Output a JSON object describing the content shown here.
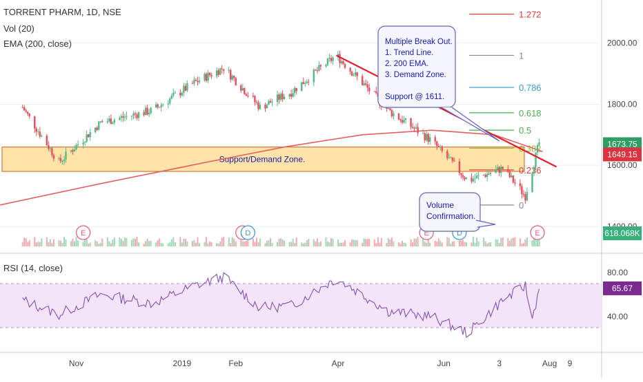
{
  "header": {
    "title": "TORRENT PHARM, 1D, NSE",
    "vol_label": "Vol (20)",
    "ema_label": "EMA (200, close)",
    "rsi_label": "RSI (14, close)"
  },
  "colors": {
    "up": "#53b987",
    "down": "#eb4d5c",
    "ema": "#e55e5e",
    "trendline": "#e01f2f",
    "zone_fill": "#ffe3a8",
    "zone_border": "#c97a3c",
    "rsi_line": "#8e5bb5",
    "rsi_band": "#f3e4f9",
    "fib_1272": "#e53935",
    "fib_1": "#888888",
    "fib_0786": "#3aa0c8",
    "fib_0618": "#4caf50",
    "fib_05": "#4caf50",
    "fib_0382": "#9cb835",
    "fib_0236": "#e53935",
    "fib_0": "#888888",
    "annotation_text": "#1a1aa8"
  },
  "chart_data": [
    {
      "type": "candlestick",
      "panel": "price",
      "title": "TORRENT PHARM, 1D, NSE",
      "y_axis_ticks": [
        2000.0,
        1800.0,
        1600.0,
        1400.0
      ],
      "y_axis_tick_labels": [
        "2000.00",
        "1800.00",
        "1600.00",
        "1400.00"
      ],
      "x_axis_tick_labels": [
        "Nov",
        "2019",
        "Feb",
        "Apr",
        "Jun",
        "3",
        "Aug",
        "9"
      ],
      "ylim": [
        1330,
        2130
      ],
      "last_close": 1673.75,
      "last_close_label": "1673.75",
      "ema200_value": 1649.15,
      "ema200_label": "1649.15",
      "approx_close_path": [
        {
          "x": "2018-10-01",
          "y": 1790
        },
        {
          "x": "2018-10-22",
          "y": 1610
        },
        {
          "x": "2018-11-15",
          "y": 1740
        },
        {
          "x": "2018-12-15",
          "y": 1780
        },
        {
          "x": "2019-01-08",
          "y": 1870
        },
        {
          "x": "2019-01-25",
          "y": 1920
        },
        {
          "x": "2019-02-15",
          "y": 1790
        },
        {
          "x": "2019-03-05",
          "y": 1840
        },
        {
          "x": "2019-03-31",
          "y": 1960
        },
        {
          "x": "2019-04-30",
          "y": 1780
        },
        {
          "x": "2019-05-25",
          "y": 1680
        },
        {
          "x": "2019-06-15",
          "y": 1550
        },
        {
          "x": "2019-07-05",
          "y": 1590
        },
        {
          "x": "2019-07-18",
          "y": 1500
        },
        {
          "x": "2019-07-26",
          "y": 1673.75
        }
      ],
      "fibonacci_levels": [
        {
          "label": "1.272",
          "value": 2095,
          "color_key": "fib_1272"
        },
        {
          "label": "1",
          "value": 1960,
          "color_key": "fib_1"
        },
        {
          "label": "0.786",
          "value": 1855,
          "color_key": "fib_0786"
        },
        {
          "label": "0.618",
          "value": 1772,
          "color_key": "fib_0618"
        },
        {
          "label": "0.5",
          "value": 1715,
          "color_key": "fib_05"
        },
        {
          "label": "0.382",
          "value": 1656,
          "color_key": "fib_0382"
        },
        {
          "label": "0.236",
          "value": 1585,
          "color_key": "fib_0236"
        },
        {
          "label": "0",
          "value": 1470,
          "color_key": "fib_0"
        }
      ],
      "annotations": {
        "zone_label": "Support/Demand Zone.",
        "zone_range": [
          1580,
          1660
        ],
        "breakout_text": [
          "Multiple Break Out.",
          "1. Trend Line.",
          "2. 200 EMA.",
          "3. Demand Zone.",
          "",
          "Support @ 1611."
        ],
        "volume_text": [
          "Volume",
          "Confirmation."
        ],
        "trendline": [
          {
            "x": "2019-03-31",
            "y": 1960
          },
          {
            "x": "2019-07-28",
            "y": 1595
          }
        ]
      },
      "events": [
        {
          "x": "2018-11-05",
          "label": "E"
        },
        {
          "x": "2019-02-05",
          "label": "E"
        },
        {
          "x": "2019-02-08",
          "label": "D"
        },
        {
          "x": "2019-05-22",
          "label": "E"
        },
        {
          "x": "2019-06-10",
          "label": "D"
        },
        {
          "x": "2019-07-25",
          "label": "E"
        }
      ]
    },
    {
      "type": "bar",
      "panel": "volume",
      "series": [
        {
          "name": "Vol (20)"
        }
      ],
      "last_value": "618.068K"
    },
    {
      "type": "line",
      "panel": "rsi",
      "title": "RSI (14, close)",
      "y_axis_ticks": [
        80.0,
        40.0
      ],
      "y_axis_tick_labels": [
        "80.00",
        "40.00"
      ],
      "band": [
        30,
        70
      ],
      "ylim": [
        10,
        95
      ],
      "last_value": 65.67,
      "last_value_label": "65.67",
      "approx_path": [
        {
          "x": "2018-10-01",
          "y": 55
        },
        {
          "x": "2018-10-22",
          "y": 42
        },
        {
          "x": "2018-11-15",
          "y": 60
        },
        {
          "x": "2018-12-15",
          "y": 52
        },
        {
          "x": "2019-01-08",
          "y": 68
        },
        {
          "x": "2019-01-25",
          "y": 76
        },
        {
          "x": "2019-02-15",
          "y": 48
        },
        {
          "x": "2019-03-05",
          "y": 50
        },
        {
          "x": "2019-03-31",
          "y": 75
        },
        {
          "x": "2019-04-30",
          "y": 45
        },
        {
          "x": "2019-05-25",
          "y": 40
        },
        {
          "x": "2019-06-15",
          "y": 25
        },
        {
          "x": "2019-07-05",
          "y": 55
        },
        {
          "x": "2019-07-18",
          "y": 68
        },
        {
          "x": "2019-07-22",
          "y": 38
        },
        {
          "x": "2019-07-26",
          "y": 65.67
        }
      ]
    }
  ]
}
